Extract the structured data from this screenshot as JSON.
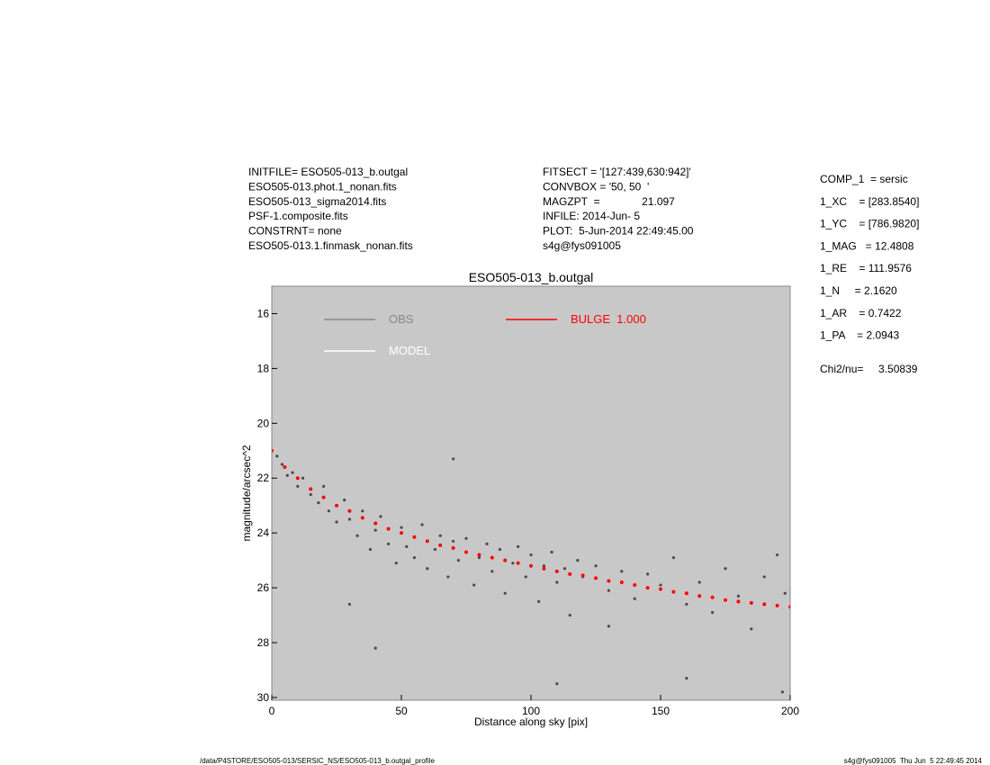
{
  "chart_data": {
    "type": "scatter",
    "title": "ESO505-013_b.outgal",
    "x_label": "Distance along sky [pix]",
    "y_label": "magnitude/arcsec^2",
    "xlim": [
      0,
      200
    ],
    "ylim": [
      30.1,
      15
    ],
    "xticks": [
      0,
      50,
      100,
      150,
      200
    ],
    "yticks": [
      16,
      18,
      20,
      22,
      24,
      26,
      28,
      30
    ],
    "background": "#c8c8c8",
    "header_left": [
      "INITFILE= ESO505-013_b.outgal",
      "ESO505-013.phot.1_nonan.fits",
      "ESO505-013_sigma2014.fits",
      "PSF-1.composite.fits",
      "CONSTRNT= none",
      "ESO505-013.1.finmask_nonan.fits"
    ],
    "header_middle": [
      "FITSECT = '[127:439,630:942]'",
      "CONVBOX = '50, 50  '",
      "MAGZPT  =              21.097",
      "INFILE: 2014-Jun- 5",
      "PLOT:  5-Jun-2014 22:49:45.00",
      "s4g@fys091005"
    ],
    "params": [
      "COMP_1  = sersic",
      "1_XC    = [283.8540]",
      "1_YC    = [786.9820]",
      "1_MAG   = 12.4808",
      "1_RE    = 111.9576",
      "1_N     = 2.1620",
      "1_AR    = 0.7422",
      "1_PA    = 2.0943"
    ],
    "chi2": "Chi2/nu=     3.50839",
    "footer_left": "/data/P4STORE/ESO505-013/SERSIC_NS/ESO505-013_b.outgal_profile",
    "footer_right": "s4g@fys091005  Thu Jun  5 22:49:45 2014",
    "series": [
      {
        "name": "OBS",
        "color": "#4a4a4a",
        "legend_color": "#888888",
        "x": [
          2,
          4,
          6,
          8,
          10,
          12,
          15,
          18,
          20,
          22,
          25,
          28,
          30,
          33,
          35,
          38,
          40,
          42,
          45,
          48,
          50,
          52,
          55,
          58,
          60,
          63,
          65,
          68,
          70,
          72,
          75,
          78,
          80,
          83,
          85,
          88,
          90,
          93,
          95,
          98,
          100,
          103,
          105,
          108,
          110,
          113,
          115,
          118,
          120,
          125,
          130,
          135,
          140,
          145,
          150,
          155,
          160,
          165,
          170,
          175,
          180,
          185,
          190,
          195,
          198,
          30,
          40,
          70,
          110,
          130,
          160,
          197
        ],
        "values": [
          21.2,
          21.5,
          21.9,
          21.8,
          22.3,
          22.0,
          22.6,
          22.9,
          22.3,
          23.2,
          23.6,
          22.8,
          23.5,
          24.1,
          23.2,
          24.6,
          23.9,
          23.4,
          24.4,
          25.1,
          23.8,
          24.5,
          24.9,
          23.7,
          25.3,
          24.6,
          24.1,
          25.6,
          24.3,
          25.0,
          24.2,
          25.9,
          24.9,
          24.4,
          25.4,
          24.6,
          26.2,
          25.1,
          24.5,
          25.6,
          24.8,
          26.5,
          25.2,
          24.7,
          25.8,
          25.3,
          27.0,
          25.0,
          25.6,
          25.2,
          26.1,
          25.4,
          26.4,
          25.5,
          25.9,
          24.9,
          26.6,
          25.8,
          26.9,
          25.3,
          26.3,
          27.5,
          25.6,
          24.8,
          26.2,
          26.6,
          28.2,
          21.3,
          29.5,
          27.4,
          29.3,
          29.8
        ]
      },
      {
        "name": "MODEL",
        "color": "#ffffff",
        "legend_color": "#ffffff",
        "x": [
          0,
          25,
          50,
          75,
          100,
          125,
          150,
          175,
          200
        ],
        "values": [
          21.0,
          23.0,
          24.0,
          24.7,
          25.2,
          25.65,
          26.05,
          26.45,
          26.7
        ]
      },
      {
        "name": "BULGE  1.000",
        "color": "#ff0000",
        "legend_color": "#ff0000",
        "x": [
          0,
          5,
          10,
          15,
          20,
          25,
          30,
          35,
          40,
          45,
          50,
          55,
          60,
          65,
          70,
          75,
          80,
          85,
          90,
          95,
          100,
          105,
          110,
          115,
          120,
          125,
          130,
          135,
          140,
          145,
          150,
          155,
          160,
          165,
          170,
          175,
          180,
          185,
          190,
          195,
          200
        ],
        "values": [
          21.0,
          21.6,
          22.0,
          22.4,
          22.7,
          23.0,
          23.2,
          23.45,
          23.65,
          23.85,
          24.0,
          24.15,
          24.3,
          24.45,
          24.55,
          24.7,
          24.8,
          24.9,
          25.0,
          25.1,
          25.2,
          25.3,
          25.4,
          25.5,
          25.55,
          25.65,
          25.75,
          25.8,
          25.9,
          26.0,
          26.05,
          26.15,
          26.2,
          26.3,
          26.35,
          26.45,
          26.5,
          26.55,
          26.6,
          26.65,
          26.7
        ]
      }
    ]
  }
}
